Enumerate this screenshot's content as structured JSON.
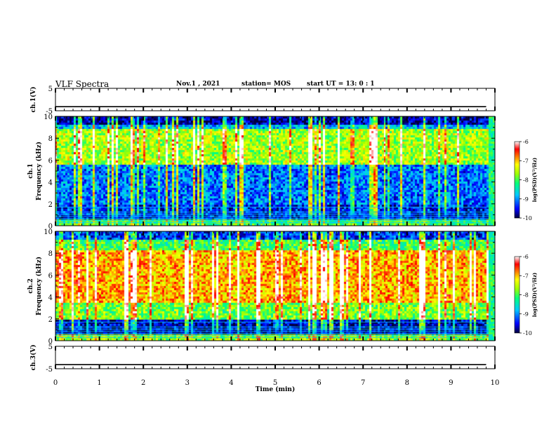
{
  "header": {
    "title": "VLF Spectra",
    "date": "Nov.1 , 2021",
    "station": "station= MOS",
    "start": "start UT = 13: 0 : 1"
  },
  "chart_data": [
    {
      "type": "line",
      "panel": "ch1-waveform",
      "ylabel": "ch.1(V)",
      "ylim": [
        -5,
        5
      ],
      "yticks": [
        "5",
        "-5"
      ],
      "x": [
        0,
        1,
        2,
        3,
        4,
        5,
        6,
        7,
        8,
        9,
        9.8
      ],
      "values": [
        -3.2,
        -3.2,
        -3.2,
        -3.2,
        -3.2,
        -3.2,
        -3.2,
        -3.2,
        -3.2,
        -3.2,
        -3.2
      ]
    },
    {
      "type": "heatmap",
      "panel": "ch1-spectrogram",
      "ylabel": "ch.1 Frequency (kHz)",
      "ylim": [
        0,
        10
      ],
      "yticks": [
        "0",
        "2",
        "4",
        "6",
        "8",
        "10"
      ],
      "xlim": [
        0,
        10
      ],
      "colorbar": {
        "label": "log(PSD)(V²/Hz)",
        "range": [
          -10,
          -6
        ],
        "ticks": [
          "-6",
          "-7",
          "-8",
          "-9",
          "-10"
        ]
      }
    },
    {
      "type": "heatmap",
      "panel": "ch2-spectrogram",
      "ylabel": "ch.2 Frequency (kHz)",
      "ylim": [
        0,
        10
      ],
      "yticks": [
        "0",
        "2",
        "4",
        "6",
        "8",
        "10"
      ],
      "xlim": [
        0,
        10
      ],
      "colorbar": {
        "label": "log(PSD)(V²/Hz)",
        "range": [
          -10,
          -6
        ],
        "ticks": [
          "-6",
          "-7",
          "-8",
          "-9",
          "-10"
        ]
      }
    },
    {
      "type": "line",
      "panel": "ch3-waveform",
      "ylabel": "ch.3(V)",
      "ylim": [
        -5,
        5
      ],
      "yticks": [
        "5",
        "-5"
      ],
      "x": [
        0,
        1,
        2,
        3,
        4,
        5,
        6,
        7,
        8,
        9,
        9.8
      ],
      "values": [
        -3.2,
        -3.2,
        -3.2,
        -3.2,
        -3.2,
        -3.2,
        -3.2,
        -3.2,
        -3.2,
        -3.2,
        -3.2
      ]
    }
  ],
  "x_axis": {
    "label": "Time (min)",
    "ticks": [
      "0",
      "1",
      "2",
      "3",
      "4",
      "5",
      "6",
      "7",
      "8",
      "9",
      "10"
    ],
    "range": [
      0,
      10
    ]
  },
  "colors": {
    "colormap": [
      "#000080",
      "#0000ff",
      "#00c8ff",
      "#00ff80",
      "#80ff00",
      "#ffff00",
      "#ff8000",
      "#ff0000",
      "#ffffff"
    ],
    "background": "#ffffff",
    "axis": "#000000"
  }
}
